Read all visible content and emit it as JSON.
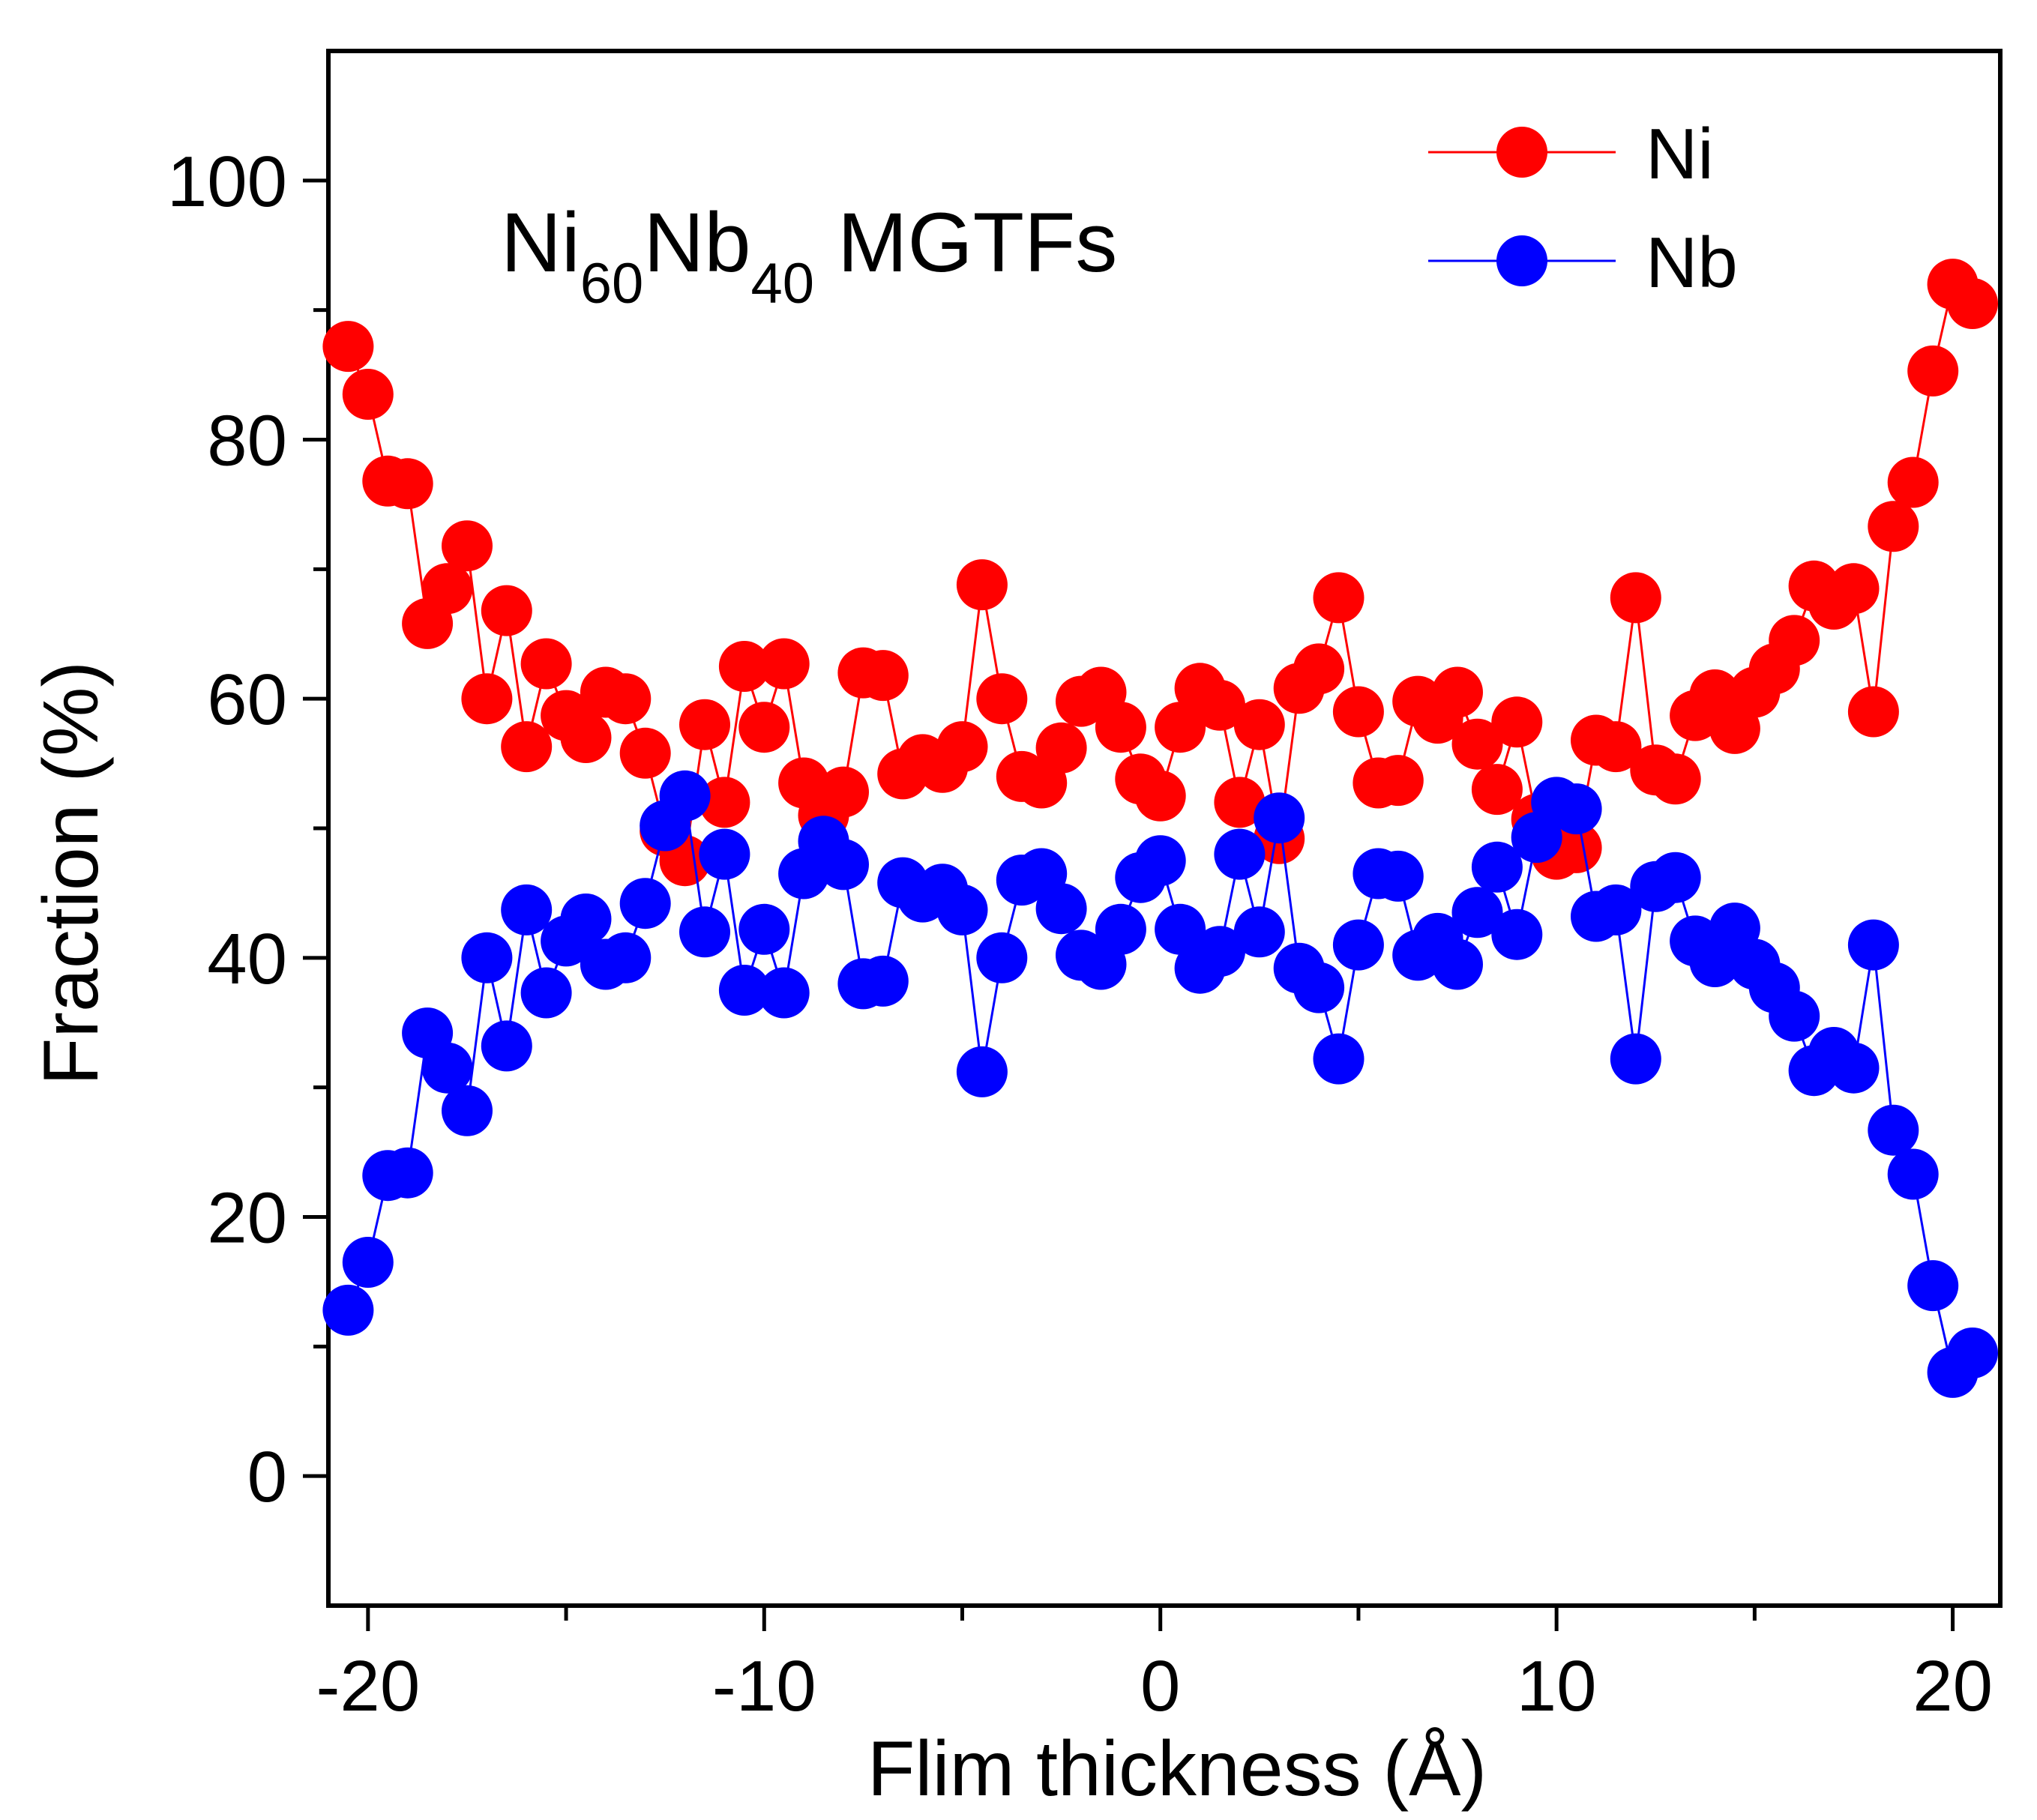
{
  "chart_data": {
    "type": "line",
    "title_parts": [
      "Ni",
      "60",
      "Nb",
      "40",
      " MGTFs"
    ],
    "xlabel": "Flim thickness (Å)",
    "ylabel": "Fraction (%)",
    "xlim": [
      -21.0,
      21.2
    ],
    "ylim": [
      -10,
      110
    ],
    "x_ticks": [
      -20,
      -10,
      0,
      10,
      20
    ],
    "x_tick_labels": [
      "-20",
      "-10",
      "0",
      "10",
      "20"
    ],
    "x_minor_ticks": [
      -15,
      -5,
      5,
      15
    ],
    "y_ticks": [
      0,
      20,
      40,
      60,
      80,
      100
    ],
    "y_tick_labels": [
      "0",
      "20",
      "40",
      "60",
      "80",
      "100"
    ],
    "y_minor_ticks": [
      10,
      30,
      50,
      70,
      90
    ],
    "legend_position": "top-right",
    "series": [
      {
        "name": "Ni",
        "color": "#ff0000",
        "marker": "circle",
        "points": [
          [
            -20.5,
            87.2
          ],
          [
            -20.0,
            83.5
          ],
          [
            -19.5,
            76.8
          ],
          [
            -19.0,
            76.6
          ],
          [
            -18.5,
            65.8
          ],
          [
            -18.0,
            68.5
          ],
          [
            -17.5,
            71.8
          ],
          [
            -17.0,
            60.0
          ],
          [
            -16.5,
            66.8
          ],
          [
            -16.0,
            56.3
          ],
          [
            -15.5,
            62.7
          ],
          [
            -15.0,
            58.7
          ],
          [
            -14.5,
            57.0
          ],
          [
            -14.0,
            60.5
          ],
          [
            -13.5,
            60.0
          ],
          [
            -13.0,
            55.8
          ],
          [
            -12.5,
            49.8
          ],
          [
            -12.0,
            47.5
          ],
          [
            -11.5,
            58.0
          ],
          [
            -11.0,
            52.0
          ],
          [
            -10.5,
            62.5
          ],
          [
            -10.0,
            57.8
          ],
          [
            -9.5,
            62.7
          ],
          [
            -9.0,
            53.5
          ],
          [
            -8.5,
            51.0
          ],
          [
            -8.0,
            52.8
          ],
          [
            -7.5,
            62.0
          ],
          [
            -7.0,
            61.8
          ],
          [
            -6.5,
            54.2
          ],
          [
            -6.0,
            55.3
          ],
          [
            -5.5,
            54.7
          ],
          [
            -5.0,
            56.3
          ],
          [
            -4.5,
            68.8
          ],
          [
            -4.0,
            60.0
          ],
          [
            -3.5,
            54.0
          ],
          [
            -3.0,
            53.5
          ],
          [
            -2.5,
            56.2
          ],
          [
            -2.0,
            59.8
          ],
          [
            -1.5,
            60.5
          ],
          [
            -1.0,
            57.8
          ],
          [
            -0.5,
            53.8
          ],
          [
            0.0,
            52.5
          ],
          [
            0.5,
            57.8
          ],
          [
            1.0,
            60.8
          ],
          [
            1.5,
            59.5
          ],
          [
            2.0,
            52.0
          ],
          [
            2.5,
            58.0
          ],
          [
            3.0,
            49.2
          ],
          [
            3.5,
            60.8
          ],
          [
            4.0,
            62.3
          ],
          [
            4.5,
            67.8
          ],
          [
            5.0,
            59.0
          ],
          [
            5.5,
            53.5
          ],
          [
            6.0,
            53.7
          ],
          [
            6.5,
            59.8
          ],
          [
            7.0,
            58.5
          ],
          [
            7.5,
            60.5
          ],
          [
            8.0,
            56.5
          ],
          [
            8.5,
            53.0
          ],
          [
            9.0,
            58.2
          ],
          [
            9.5,
            50.7
          ],
          [
            10.0,
            48.0
          ],
          [
            10.5,
            48.5
          ],
          [
            11.0,
            56.8
          ],
          [
            11.5,
            56.3
          ],
          [
            12.0,
            67.8
          ],
          [
            12.5,
            54.5
          ],
          [
            13.0,
            53.8
          ],
          [
            13.5,
            58.7
          ],
          [
            14.0,
            60.3
          ],
          [
            14.5,
            57.7
          ],
          [
            15.0,
            60.5
          ],
          [
            15.5,
            62.3
          ],
          [
            16.0,
            64.5
          ],
          [
            16.5,
            68.7
          ],
          [
            17.0,
            67.3
          ],
          [
            17.5,
            68.5
          ],
          [
            18.0,
            59.0
          ],
          [
            18.5,
            73.3
          ],
          [
            19.0,
            76.7
          ],
          [
            19.5,
            85.3
          ],
          [
            20.0,
            92.0
          ],
          [
            20.5,
            90.5
          ]
        ]
      },
      {
        "name": "Nb",
        "color": "#0000ff",
        "marker": "circle",
        "points": [
          [
            -20.5,
            12.8
          ],
          [
            -20.0,
            16.5
          ],
          [
            -19.5,
            23.2
          ],
          [
            -19.0,
            23.4
          ],
          [
            -18.5,
            34.2
          ],
          [
            -18.0,
            31.5
          ],
          [
            -17.5,
            28.2
          ],
          [
            -17.0,
            40.0
          ],
          [
            -16.5,
            33.2
          ],
          [
            -16.0,
            43.7
          ],
          [
            -15.5,
            37.3
          ],
          [
            -15.0,
            41.3
          ],
          [
            -14.5,
            43.0
          ],
          [
            -14.0,
            39.5
          ],
          [
            -13.5,
            40.0
          ],
          [
            -13.0,
            44.2
          ],
          [
            -12.5,
            50.2
          ],
          [
            -12.0,
            52.5
          ],
          [
            -11.5,
            42.0
          ],
          [
            -11.0,
            48.0
          ],
          [
            -10.5,
            37.5
          ],
          [
            -10.0,
            42.2
          ],
          [
            -9.5,
            37.3
          ],
          [
            -9.0,
            46.5
          ],
          [
            -8.5,
            49.0
          ],
          [
            -8.0,
            47.2
          ],
          [
            -7.5,
            38.0
          ],
          [
            -7.0,
            38.2
          ],
          [
            -6.5,
            45.8
          ],
          [
            -6.0,
            44.7
          ],
          [
            -5.5,
            45.3
          ],
          [
            -5.0,
            43.7
          ],
          [
            -4.5,
            31.2
          ],
          [
            -4.0,
            40.0
          ],
          [
            -3.5,
            46.0
          ],
          [
            -3.0,
            46.5
          ],
          [
            -2.5,
            43.8
          ],
          [
            -2.0,
            40.2
          ],
          [
            -1.5,
            39.5
          ],
          [
            -1.0,
            42.2
          ],
          [
            -0.5,
            46.2
          ],
          [
            0.0,
            47.5
          ],
          [
            0.5,
            42.2
          ],
          [
            1.0,
            39.2
          ],
          [
            1.5,
            40.5
          ],
          [
            2.0,
            48.0
          ],
          [
            2.5,
            42.0
          ],
          [
            3.0,
            50.8
          ],
          [
            3.5,
            39.2
          ],
          [
            4.0,
            37.7
          ],
          [
            4.5,
            32.2
          ],
          [
            5.0,
            41.0
          ],
          [
            5.5,
            46.5
          ],
          [
            6.0,
            46.3
          ],
          [
            6.5,
            40.2
          ],
          [
            7.0,
            41.5
          ],
          [
            7.5,
            39.5
          ],
          [
            8.0,
            43.5
          ],
          [
            8.5,
            47.0
          ],
          [
            9.0,
            41.8
          ],
          [
            9.5,
            49.3
          ],
          [
            10.0,
            52.0
          ],
          [
            10.5,
            51.5
          ],
          [
            11.0,
            43.2
          ],
          [
            11.5,
            43.7
          ],
          [
            12.0,
            32.2
          ],
          [
            12.5,
            45.5
          ],
          [
            13.0,
            46.2
          ],
          [
            13.5,
            41.3
          ],
          [
            14.0,
            39.7
          ],
          [
            14.5,
            42.3
          ],
          [
            15.0,
            39.5
          ],
          [
            15.5,
            37.7
          ],
          [
            16.0,
            35.5
          ],
          [
            16.5,
            31.3
          ],
          [
            17.0,
            32.7
          ],
          [
            17.5,
            31.5
          ],
          [
            18.0,
            41.0
          ],
          [
            18.5,
            26.7
          ],
          [
            19.0,
            23.3
          ],
          [
            19.5,
            14.7
          ],
          [
            20.0,
            8.0
          ],
          [
            20.5,
            9.5
          ]
        ]
      }
    ]
  }
}
